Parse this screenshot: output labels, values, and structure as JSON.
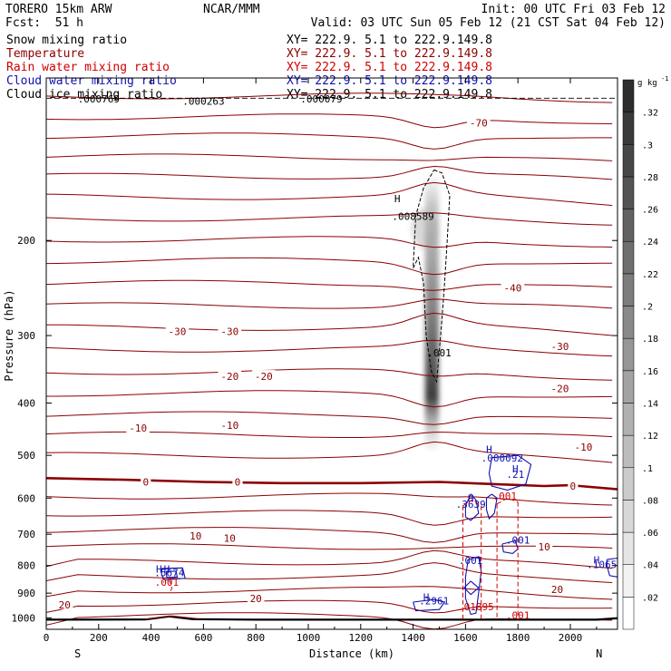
{
  "header": {
    "model": "TORERO  15km ARW",
    "org": "NCAR/MMM",
    "init": "Init: 00 UTC Fri 03 Feb 12",
    "fcst_label": "Fcst:",
    "fcst_value": "51 h",
    "valid": "Valid: 03 UTC Sun 05 Feb 12 (21 CST Sat 04 Feb 12)"
  },
  "fields": [
    {
      "name": "Snow mixing ratio",
      "xy": "XY= 222.9.  5.1 to 222.9.149.8",
      "color": "#000000"
    },
    {
      "name": "Temperature",
      "xy": "XY= 222.9.  5.1 to 222.9.149.8",
      "color": "#8b0000"
    },
    {
      "name": "Rain water mixing ratio",
      "xy": "XY= 222.9.  5.1 to 222.9.149.8",
      "color": "#d00000"
    },
    {
      "name": "Cloud water mixing ratio",
      "xy": "XY= 222.9.  5.1 to 222.9.149.8",
      "color": "#1010b0"
    },
    {
      "name": "Cloud ice mixing ratio",
      "xy": "XY= 222.9.  5.1 to 222.9.149.8",
      "color": "#000000"
    }
  ],
  "chart_data": {
    "type": "contour cross-section",
    "xlabel": "Distance (km)",
    "ylabel": "Pressure (hPa)",
    "xlim": [
      0,
      2180
    ],
    "ylim": [
      1050,
      100
    ],
    "y_scale": "log",
    "x_ticks": [
      0,
      200,
      400,
      600,
      800,
      1000,
      1200,
      1400,
      1600,
      1800,
      2000
    ],
    "y_ticks": [
      200,
      300,
      400,
      500,
      600,
      700,
      800,
      900,
      1000
    ],
    "end_labels": {
      "left": "S",
      "right": "N"
    },
    "colorbar": {
      "unit": "g kg",
      "unit_exponent": "-1",
      "min": 0,
      "max": 0.34,
      "ticks": [
        ".02",
        ".04",
        ".06",
        ".08",
        ".1",
        ".12",
        ".14",
        ".16",
        ".18",
        ".2",
        ".22",
        ".24",
        ".26",
        ".28",
        ".3",
        ".32"
      ]
    },
    "temperature_contours": {
      "color": "#8b0000",
      "freezing_level": {
        "label": "0",
        "points": [
          [
            0,
            551
          ],
          [
            300,
            555
          ],
          [
            600,
            560
          ],
          [
            900,
            563
          ],
          [
            1200,
            563
          ],
          [
            1500,
            560
          ],
          [
            1700,
            565
          ],
          [
            1900,
            570
          ],
          [
            2000,
            568
          ],
          [
            2180,
            578
          ]
        ]
      },
      "labels": [
        {
          "text": "-70",
          "x": 1650,
          "p": 121
        },
        {
          "text": "-40",
          "x": 1780,
          "p": 245
        },
        {
          "text": "-30",
          "x": 500,
          "p": 295
        },
        {
          "text": "-30",
          "x": 700,
          "p": 295
        },
        {
          "text": "-30",
          "x": 1960,
          "p": 314
        },
        {
          "text": "-20",
          "x": 700,
          "p": 357
        },
        {
          "text": "-20",
          "x": 830,
          "p": 357
        },
        {
          "text": "-20",
          "x": 1960,
          "p": 376
        },
        {
          "text": "-10",
          "x": 350,
          "p": 445
        },
        {
          "text": "-10",
          "x": 700,
          "p": 440
        },
        {
          "text": "-10",
          "x": 2050,
          "p": 483
        },
        {
          "text": "0",
          "x": 380,
          "p": 560
        },
        {
          "text": "0",
          "x": 730,
          "p": 560
        },
        {
          "text": "0",
          "x": 2010,
          "p": 570
        },
        {
          "text": "10",
          "x": 570,
          "p": 705
        },
        {
          "text": "10",
          "x": 700,
          "p": 712
        },
        {
          "text": "10",
          "x": 1900,
          "p": 738
        },
        {
          "text": "20",
          "x": 800,
          "p": 920
        },
        {
          "text": "20",
          "x": 1950,
          "p": 885
        },
        {
          "text": "20",
          "x": 70,
          "p": 945
        }
      ]
    },
    "cloud_ice": {
      "color": "#000000",
      "labels": [
        {
          "text": "H",
          "x": 1340,
          "p": 170
        },
        {
          "text": ".008589",
          "x": 1400,
          "p": 183
        },
        {
          "text": ".001",
          "x": 1500,
          "p": 328
        },
        {
          "text": ".000769",
          "x": 200,
          "p": 111
        },
        {
          "text": ".000263",
          "x": 600,
          "p": 112
        },
        {
          "text": ".000079",
          "x": 1050,
          "p": 111
        }
      ]
    },
    "snow_column": {
      "x": 1470,
      "p_top": 150,
      "p_bottom": 490,
      "p_max": 390
    },
    "cloud_water": {
      "color": "#1010b0",
      "labels": [
        {
          "text": "H",
          "x": 1690,
          "p": 495
        },
        {
          "text": ".000092",
          "x": 1740,
          "p": 513
        },
        {
          "text": "H",
          "x": 1790,
          "p": 538
        },
        {
          "text": ".21",
          "x": 1790,
          "p": 550
        },
        {
          "text": "H",
          "x": 1620,
          "p": 610
        },
        {
          "text": ".3639",
          "x": 1620,
          "p": 625
        },
        {
          "text": ".001",
          "x": 1620,
          "p": 795
        },
        {
          "text": ".001",
          "x": 1800,
          "p": 728
        },
        {
          "text": "H",
          "x": 1450,
          "p": 930
        },
        {
          "text": ".2961",
          "x": 1480,
          "p": 944
        },
        {
          "text": "H",
          "x": 2100,
          "p": 794
        },
        {
          "text": ".1065",
          "x": 2120,
          "p": 808
        },
        {
          "text": "H",
          "x": 430,
          "p": 824
        },
        {
          "text": "H",
          "x": 460,
          "p": 824
        },
        {
          "text": ".5674",
          "x": 470,
          "p": 837
        }
      ]
    },
    "rain_water": {
      "color": "#d00000",
      "labels": [
        {
          "text": ".001",
          "x": 1750,
          "p": 604
        },
        {
          "text": ".001",
          "x": 460,
          "p": 872
        },
        {
          "text": ".01895",
          "x": 1640,
          "p": 968
        },
        {
          "text": ".001",
          "x": 1800,
          "p": 1004
        }
      ]
    }
  }
}
